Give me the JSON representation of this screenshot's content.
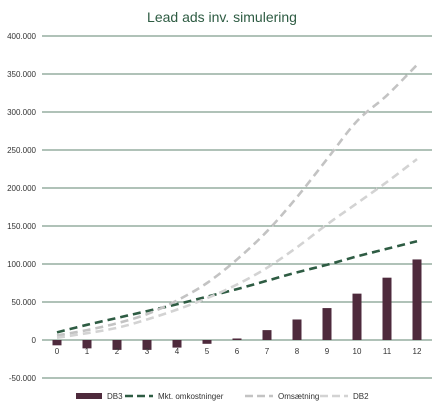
{
  "chart_data": {
    "type": "bar",
    "title": "Lead ads inv. simulering",
    "xlabel": "",
    "ylabel": "",
    "categories": [
      "0",
      "1",
      "2",
      "3",
      "4",
      "5",
      "6",
      "7",
      "8",
      "9",
      "10",
      "11",
      "12"
    ],
    "y_tick_labels": [
      "400.000",
      "350.000",
      "300.000",
      "250.000",
      "200.000",
      "150.000",
      "100.000",
      "50.000",
      "0",
      "-50.000"
    ],
    "ylim": [
      -50000,
      400000
    ],
    "grid": true,
    "legend_position": "bottom",
    "series": [
      {
        "name": "DB3",
        "kind": "bar",
        "color": "#4e2a3c",
        "values": [
          -7000,
          -11000,
          -13000,
          -13000,
          -10000,
          -5000,
          2000,
          13000,
          27000,
          42000,
          61000,
          82000,
          106000
        ]
      },
      {
        "name": "Mkt. omkostninger",
        "kind": "line",
        "dash": "dashed",
        "color": "#2e5c43",
        "values": [
          10000,
          20000,
          29000,
          38000,
          47000,
          57000,
          67000,
          78000,
          89000,
          99000,
          110000,
          120000,
          130000
        ]
      },
      {
        "name": "Omsætning",
        "kind": "line",
        "dash": "dashed",
        "color": "#c3c3c3",
        "values": [
          6000,
          13000,
          22000,
          34000,
          52000,
          75000,
          106000,
          143000,
          188000,
          238000,
          288000,
          322000,
          362000
        ]
      },
      {
        "name": "DB2",
        "kind": "line",
        "dash": "dashed",
        "color": "#d3d3d3",
        "values": [
          3000,
          9000,
          16000,
          27000,
          40000,
          55000,
          73000,
          95000,
          122000,
          152000,
          180000,
          208000,
          238000
        ]
      }
    ]
  }
}
